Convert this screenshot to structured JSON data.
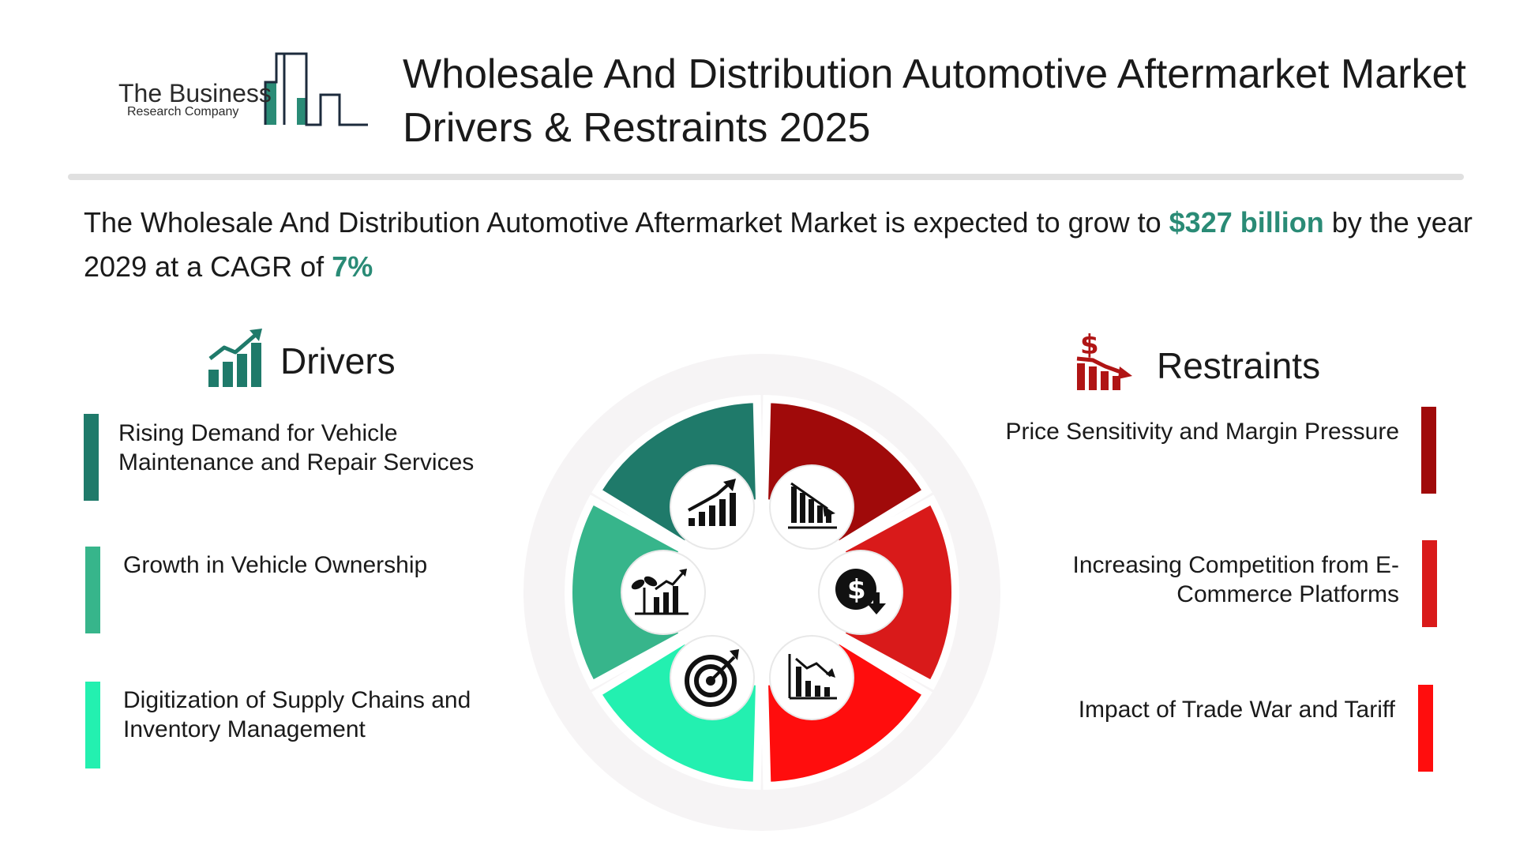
{
  "logo": {
    "line1": "The Business",
    "line2": "Research Company"
  },
  "title": "Wholesale And Distribution Automotive Aftermarket Market Drivers & Restraints 2025",
  "intro": {
    "text_before": "The Wholesale And Distribution Automotive Aftermarket Market is expected to grow to ",
    "value": "$327 billion",
    "text_middle": " by the year 2029 at a CAGR of  ",
    "cagr": "7%"
  },
  "drivers": {
    "title": "Drivers",
    "icon": "growth-chart-icon",
    "items": [
      {
        "text": "Rising Demand for Vehicle Maintenance and Repair Services",
        "color": "#1f7a6a"
      },
      {
        "text": "Growth in Vehicle Ownership",
        "color": "#37b58b"
      },
      {
        "text": "Digitization of Supply Chains and Inventory Management",
        "color": "#23f0b0"
      }
    ]
  },
  "restraints": {
    "title": "Restraints",
    "icon": "dollar-decline-icon",
    "items": [
      {
        "text": "Price Sensitivity and Margin Pressure",
        "color": "#a00a0a"
      },
      {
        "text": "Increasing Competition from E-Commerce Platforms",
        "color": "#d91a1a"
      },
      {
        "text": "Impact of Trade War and Tariff",
        "color": "#ff0d0d"
      }
    ]
  },
  "wheel": {
    "segments": [
      {
        "name": "driver-1",
        "color": "#1f7a6a",
        "icon": "rising-bar-chart-icon"
      },
      {
        "name": "driver-2",
        "color": "#37b58b",
        "icon": "plant-growth-chart-icon"
      },
      {
        "name": "driver-3",
        "color": "#23f0b0",
        "icon": "target-icon"
      },
      {
        "name": "restraint-1",
        "color": "#a00a0a",
        "icon": "declining-bar-chart-icon"
      },
      {
        "name": "restraint-2",
        "color": "#d91a1a",
        "icon": "dollar-down-icon"
      },
      {
        "name": "restraint-3",
        "color": "#ff0d0d",
        "icon": "declining-trend-chart-icon"
      }
    ],
    "ring_color": "#f6f4f5"
  },
  "colors": {
    "accent_green": "#2a8b76",
    "accent_red": "#b01515",
    "divider": "#e0e0e0"
  }
}
